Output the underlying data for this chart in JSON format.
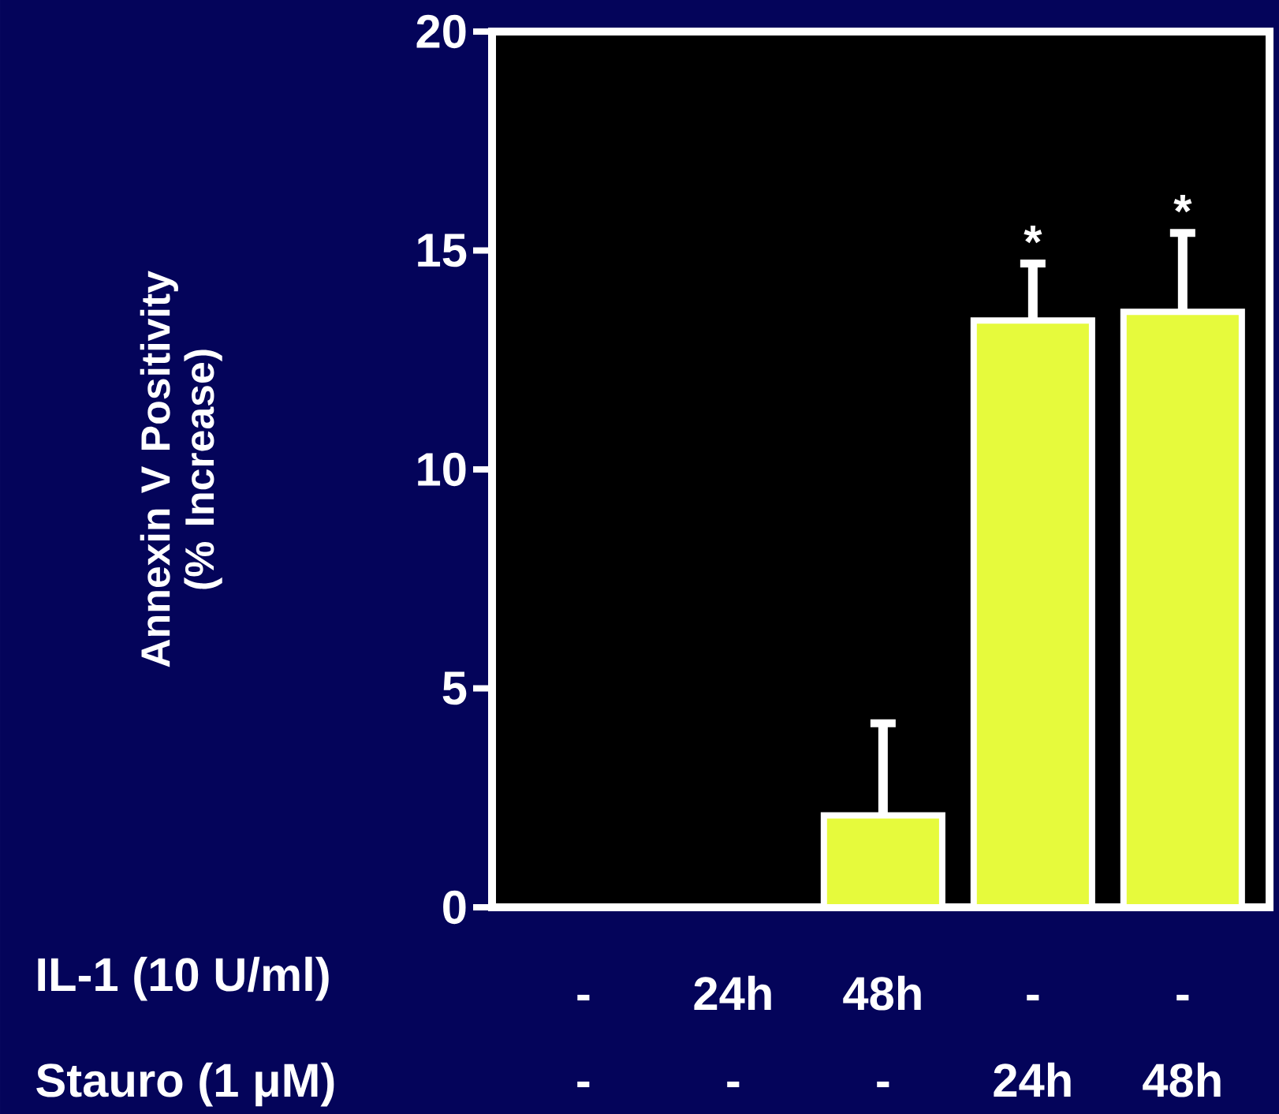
{
  "chart_data": {
    "type": "bar",
    "categories": [
      "-",
      "24h",
      "48h",
      "-",
      "-"
    ],
    "values": [
      0,
      0,
      2.1,
      13.4,
      13.6
    ],
    "errors": [
      null,
      null,
      2.1,
      1.3,
      1.8
    ],
    "value_labels": [
      null,
      null,
      null,
      "*",
      "*"
    ],
    "color": "#e6fa3c",
    "ylabel": "Annexin V Positivity (% Increase)",
    "ylim": [
      0,
      20
    ],
    "yticks": [
      0,
      5,
      10,
      15,
      20
    ],
    "annotations": [
      "IL-1 (10 U/ml)",
      "Stauro (1 μM)",
      "-",
      "-",
      "-",
      "24h",
      "48h"
    ]
  }
}
